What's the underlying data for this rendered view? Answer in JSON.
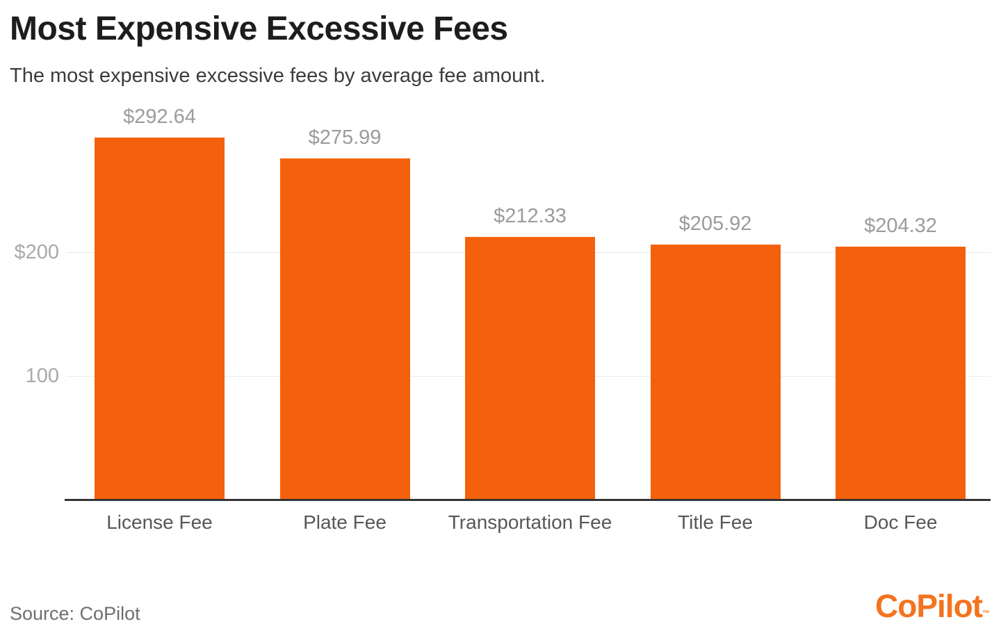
{
  "header": {
    "title": "Most Expensive Excessive Fees",
    "subtitle": "The most expensive excessive fees by average fee amount."
  },
  "footer": {
    "source_label": "Source: CoPilot",
    "logo_text": "CoPilot",
    "logo_tm": "™"
  },
  "colors": {
    "bar": "#f4610d",
    "logo": "#f4731d",
    "grid": "#e9e9e9",
    "axis": "#333333",
    "value_label": "#9b9b9b",
    "tick_label": "#a9a9a9",
    "category_label": "#565759"
  },
  "chart_data": {
    "type": "bar",
    "title": "Most Expensive Excessive Fees",
    "subtitle": "The most expensive excessive fees by average fee amount.",
    "categories": [
      "License Fee",
      "Plate Fee",
      "Transportation Fee",
      "Title Fee",
      "Doc Fee"
    ],
    "values": [
      292.64,
      275.99,
      212.33,
      205.92,
      204.32
    ],
    "value_labels": [
      "$292.64",
      "$275.99",
      "$212.33",
      "$205.92",
      "$204.32"
    ],
    "y_ticks": [
      {
        "label": "$200",
        "value": 200
      },
      {
        "label": "100",
        "value": 100
      }
    ],
    "ylim": [
      0,
      325
    ],
    "xlabel": "",
    "ylabel": "",
    "grid": "horizontal",
    "legend": "none",
    "source": "CoPilot"
  }
}
